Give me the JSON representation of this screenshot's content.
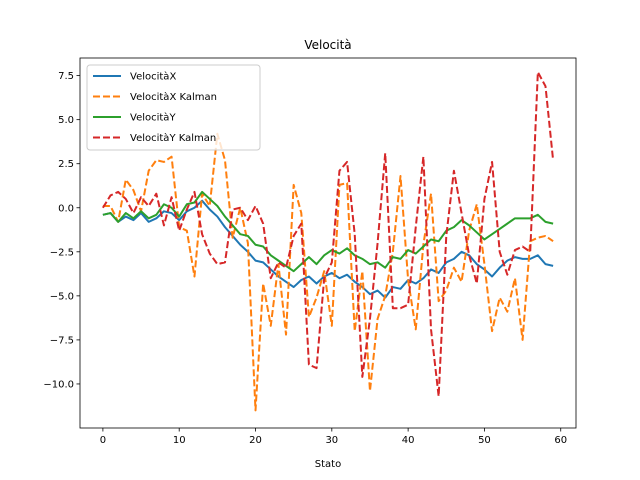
{
  "chart_data": {
    "type": "line",
    "title": "Velocità",
    "xlabel": "Stato",
    "ylabel": "",
    "xlim": [
      -3,
      62
    ],
    "ylim": [
      -12.5,
      8.5
    ],
    "xticks": [
      0,
      10,
      20,
      30,
      40,
      50,
      60
    ],
    "yticks": [
      7.5,
      5.0,
      2.5,
      0.0,
      -2.5,
      -5.0,
      -7.5,
      -10.0
    ],
    "ytick_labels": [
      "7.5",
      "5.0",
      "2.5",
      "0.0",
      "−2.5",
      "−5.0",
      "−7.5",
      "−10.0"
    ],
    "legend_position": "top-left",
    "grid": false,
    "x": [
      0,
      1,
      2,
      3,
      4,
      5,
      6,
      7,
      8,
      9,
      10,
      11,
      12,
      13,
      14,
      15,
      16,
      17,
      18,
      19,
      20,
      21,
      22,
      23,
      24,
      25,
      26,
      27,
      28,
      29,
      30,
      31,
      32,
      33,
      34,
      35,
      36,
      37,
      38,
      39,
      40,
      41,
      42,
      43,
      44,
      45,
      46,
      47,
      48,
      49,
      50,
      51,
      52,
      53,
      54,
      55,
      56,
      57,
      58,
      59
    ],
    "series": [
      {
        "name": "VelocitàX",
        "color": "#1f77b4",
        "dash": "solid",
        "values": [
          -0.4,
          -0.3,
          -0.8,
          -0.5,
          -0.7,
          -0.3,
          -0.8,
          -0.6,
          -0.2,
          -0.3,
          -0.7,
          -0.2,
          0.0,
          0.4,
          -0.1,
          -0.5,
          -1.1,
          -1.6,
          -2.1,
          -2.5,
          -3.0,
          -3.1,
          -3.5,
          -3.9,
          -4.2,
          -4.5,
          -4.1,
          -3.9,
          -4.3,
          -3.9,
          -3.7,
          -4.0,
          -3.8,
          -4.2,
          -4.5,
          -4.9,
          -4.7,
          -5.1,
          -4.5,
          -4.6,
          -4.1,
          -4.3,
          -4.0,
          -3.5,
          -3.7,
          -3.1,
          -2.9,
          -2.5,
          -2.7,
          -3.2,
          -3.5,
          -3.9,
          -3.4,
          -3.0,
          -2.8,
          -2.9,
          -2.9,
          -2.7,
          -3.2,
          -3.3
        ]
      },
      {
        "name": "VelocitàX Kalman",
        "color": "#ff7f0e",
        "dash": "dashed",
        "values": [
          0.1,
          0.1,
          -0.8,
          1.6,
          1.0,
          -0.2,
          2.1,
          2.7,
          2.6,
          2.9,
          -1.1,
          -1.3,
          -3.9,
          0.8,
          0.1,
          4.2,
          2.7,
          -1.7,
          0.0,
          -2.0,
          -11.5,
          -4.3,
          -6.7,
          -3.2,
          -7.2,
          1.3,
          -0.3,
          -6.2,
          -5.1,
          -3.6,
          -6.7,
          1.3,
          1.4,
          -7.0,
          -3.6,
          -10.4,
          -6.3,
          -5.0,
          -2.5,
          1.8,
          -4.1,
          -6.9,
          -2.1,
          0.8,
          -5.3,
          -4.7,
          -3.4,
          -4.2,
          -1.3,
          0.2,
          -3.2,
          -7.0,
          -5.1,
          -5.9,
          -4.0,
          -7.5,
          -1.9,
          -1.7,
          -1.6,
          -1.9
        ]
      },
      {
        "name": "VelocitàY",
        "color": "#2ca02c",
        "dash": "solid",
        "values": [
          -0.4,
          -0.3,
          -0.8,
          -0.3,
          -0.6,
          -0.2,
          -0.6,
          -0.4,
          0.2,
          0.0,
          -0.5,
          0.2,
          0.3,
          0.9,
          0.5,
          0.1,
          -0.5,
          -1.0,
          -1.5,
          -1.6,
          -2.1,
          -2.2,
          -2.7,
          -3.0,
          -3.3,
          -3.6,
          -3.2,
          -2.8,
          -3.2,
          -2.7,
          -2.4,
          -2.6,
          -2.3,
          -2.7,
          -2.9,
          -3.2,
          -3.1,
          -3.4,
          -2.8,
          -2.9,
          -2.4,
          -2.6,
          -2.2,
          -1.8,
          -1.9,
          -1.3,
          -1.1,
          -0.7,
          -1.0,
          -1.4,
          -1.8,
          -1.5,
          -1.2,
          -0.9,
          -0.6,
          -0.6,
          -0.6,
          -0.4,
          -0.8,
          -0.9
        ]
      },
      {
        "name": "VelocitàY Kalman",
        "color": "#d62728",
        "dash": "dashed",
        "values": [
          0.0,
          0.7,
          0.9,
          0.5,
          -0.3,
          0.6,
          0.1,
          0.8,
          -1.0,
          0.6,
          -1.3,
          -0.1,
          0.9,
          -1.5,
          -2.6,
          -3.2,
          -3.1,
          -0.1,
          0.0,
          -0.7,
          0.1,
          -0.9,
          -4.0,
          -3.1,
          -3.4,
          -1.6,
          -0.9,
          -8.9,
          -9.1,
          -4.0,
          -3.1,
          2.1,
          2.6,
          -1.5,
          -9.6,
          -6.3,
          -2.0,
          3.1,
          -5.7,
          -5.7,
          -5.5,
          -1.1,
          2.9,
          -6.9,
          -10.7,
          -1.6,
          2.1,
          -0.3,
          -2.7,
          -4.3,
          0.5,
          2.6,
          -2.5,
          -3.8,
          -2.4,
          -2.2,
          -2.5,
          7.7,
          6.9,
          2.7
        ]
      }
    ]
  }
}
